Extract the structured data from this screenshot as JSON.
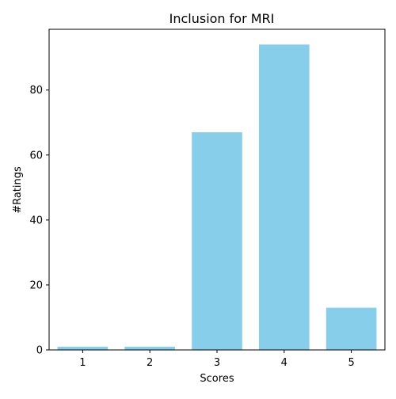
{
  "chart_data": {
    "type": "bar",
    "title": "Inclusion for MRI",
    "xlabel": "Scores",
    "ylabel": "#Ratings",
    "categories": [
      "1",
      "2",
      "3",
      "4",
      "5"
    ],
    "values": [
      1,
      1,
      67,
      94,
      13
    ],
    "ylim": [
      0,
      98.7
    ],
    "yticks": [
      0,
      20,
      40,
      60,
      80
    ],
    "bar_color": "#87CEEB",
    "grid": false,
    "legend": "none"
  }
}
